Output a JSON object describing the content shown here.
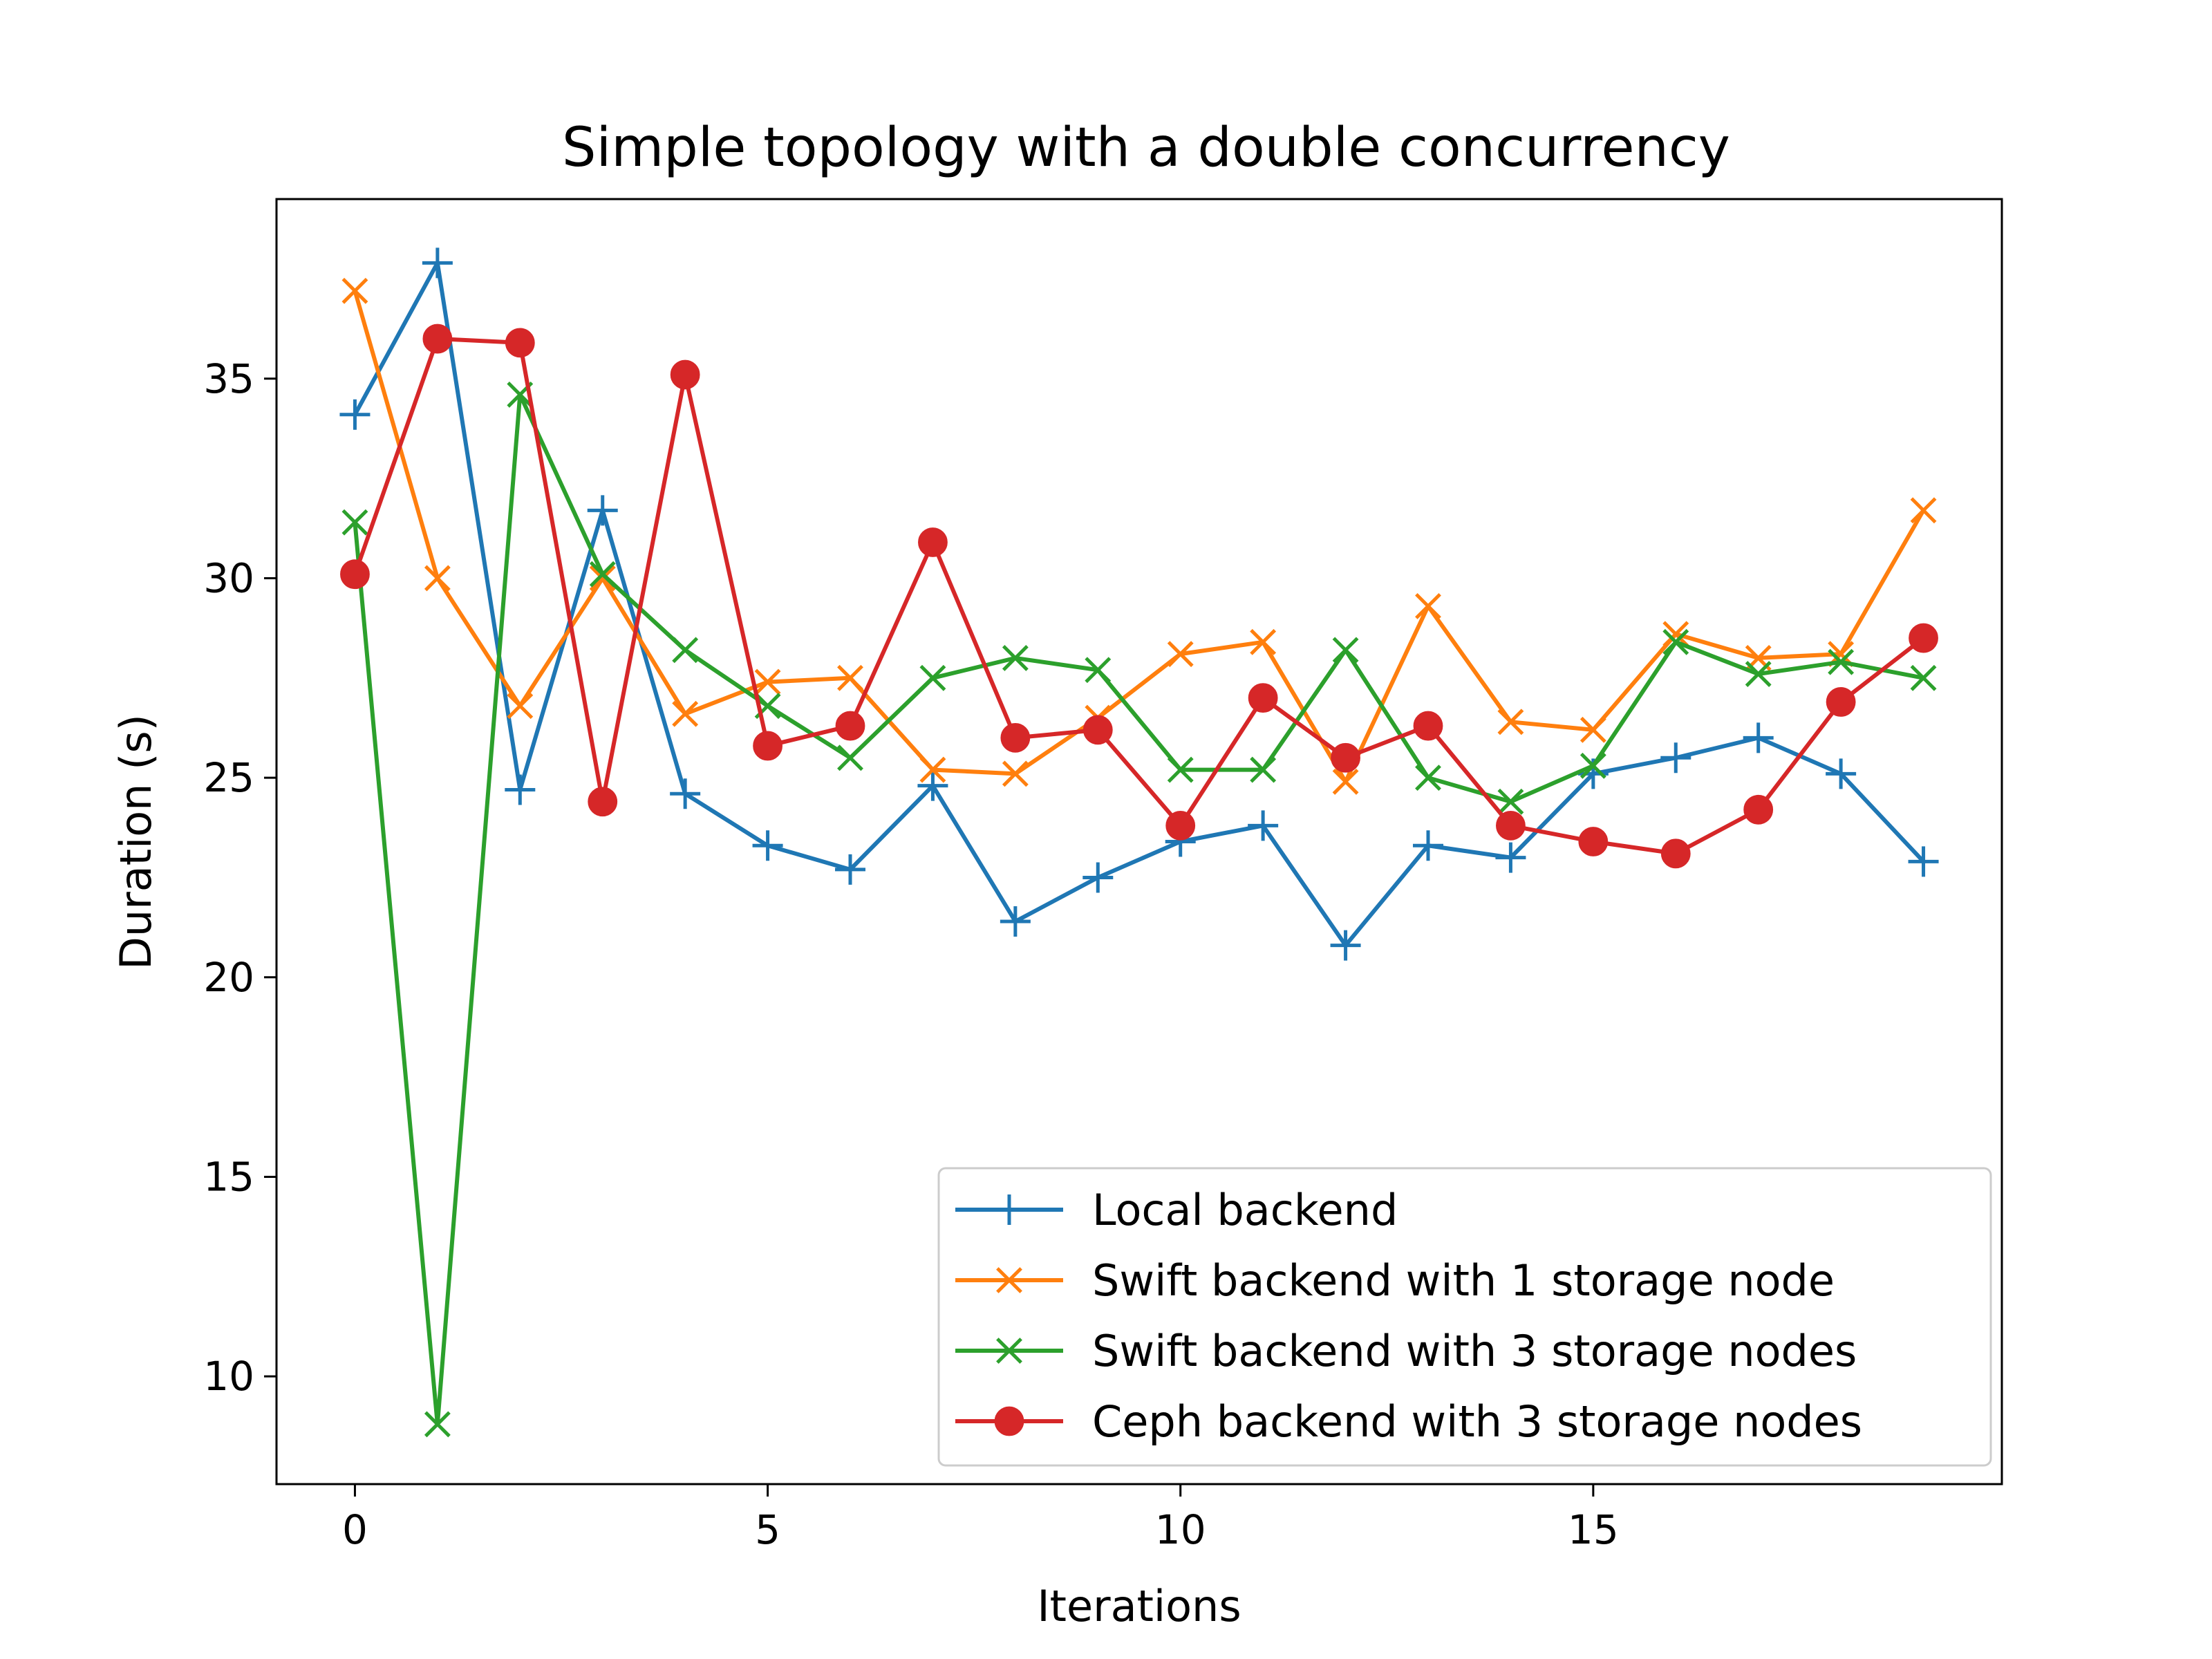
{
  "chart_data": {
    "type": "line",
    "title": "Simple topology with a double concurrency",
    "xlabel": "Iterations",
    "ylabel": "Duration (s)",
    "xlim": [
      -0.95,
      19.95
    ],
    "ylim": [
      7.3,
      39.5
    ],
    "xticks": [
      0,
      5,
      10,
      15
    ],
    "yticks": [
      10,
      15,
      20,
      25,
      30,
      35
    ],
    "grid": false,
    "legend_position": "lower-right",
    "x": [
      0,
      1,
      2,
      3,
      4,
      5,
      6,
      7,
      8,
      9,
      10,
      11,
      12,
      13,
      14,
      15,
      16,
      17,
      18,
      19
    ],
    "series": [
      {
        "name": "Local backend",
        "color": "#1f77b4",
        "marker": "plus",
        "values": [
          34.1,
          37.9,
          24.7,
          31.7,
          24.6,
          23.3,
          22.7,
          24.8,
          21.4,
          22.5,
          23.4,
          23.8,
          20.8,
          23.3,
          23.0,
          25.1,
          25.5,
          26.0,
          25.1,
          22.9
        ]
      },
      {
        "name": "Swift backend with 1 storage node",
        "color": "#ff7f0e",
        "marker": "x",
        "values": [
          37.2,
          30.0,
          26.8,
          30.0,
          26.6,
          27.4,
          27.5,
          25.2,
          25.1,
          26.5,
          28.1,
          28.4,
          24.9,
          29.3,
          26.4,
          26.2,
          28.6,
          28.0,
          28.1,
          31.7
        ]
      },
      {
        "name": "Swift backend with 3 storage nodes",
        "color": "#2ca02c",
        "marker": "x",
        "values": [
          31.4,
          8.8,
          34.6,
          30.1,
          28.2,
          26.8,
          25.5,
          27.5,
          28.0,
          27.7,
          25.2,
          25.2,
          28.2,
          25.0,
          24.4,
          25.3,
          28.4,
          27.6,
          27.9,
          27.5
        ]
      },
      {
        "name": "Ceph backend with 3 storage nodes",
        "color": "#d62728",
        "marker": "circle",
        "values": [
          30.1,
          36.0,
          35.9,
          24.4,
          35.1,
          25.8,
          26.3,
          30.9,
          26.0,
          26.2,
          23.8,
          27.0,
          25.5,
          26.3,
          23.8,
          23.4,
          23.1,
          24.2,
          26.9,
          28.5
        ]
      }
    ]
  }
}
